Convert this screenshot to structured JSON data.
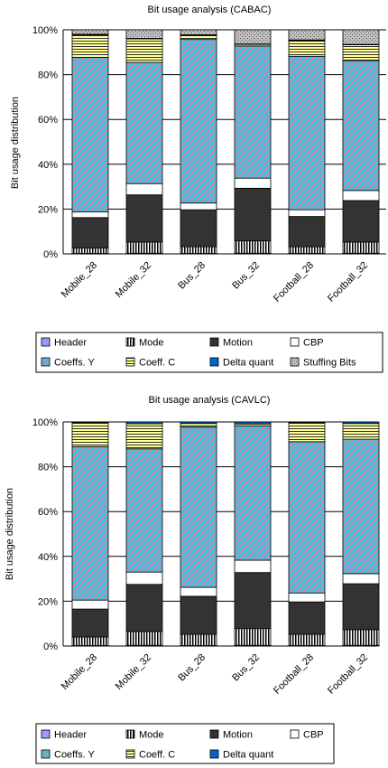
{
  "chart_data": [
    {
      "type": "bar",
      "stacked": true,
      "percent": true,
      "title": "Bit usage analysis (CABAC)",
      "ylabel": "Bit usage distribution",
      "xlabel": "",
      "ylim": [
        0,
        100
      ],
      "yticks": [
        "0%",
        "20%",
        "40%",
        "60%",
        "80%",
        "100%"
      ],
      "grid": true,
      "legend_position": "bottom",
      "categories": [
        "Mobile_28",
        "Mobile_32",
        "Bus_28",
        "Bus_32",
        "Football_28",
        "Football_32"
      ],
      "series": [
        {
          "name": "Header",
          "values": [
            0.2,
            0.3,
            0.2,
            0.3,
            0.2,
            0.3
          ]
        },
        {
          "name": "Mode",
          "values": [
            2.5,
            5,
            3,
            5.5,
            3,
            5
          ]
        },
        {
          "name": "Motion",
          "values": [
            13.5,
            21,
            16.5,
            23.5,
            13.5,
            18.5
          ]
        },
        {
          "name": "CBP",
          "values": [
            2.5,
            5,
            3,
            4.5,
            3,
            4.5
          ]
        },
        {
          "name": "Coeffs. Y",
          "values": [
            69,
            54,
            73,
            59,
            68.5,
            58
          ]
        },
        {
          "name": "Coeff. C",
          "values": [
            10,
            10.5,
            1.8,
            0.7,
            7,
            7
          ]
        },
        {
          "name": "Delta quant",
          "values": [
            0.3,
            0.2,
            0.3,
            0.2,
            0.3,
            0.2
          ]
        },
        {
          "name": "Stuffing Bits",
          "values": [
            2,
            3.8,
            2.2,
            6.3,
            4.5,
            6.5
          ]
        }
      ]
    },
    {
      "type": "bar",
      "stacked": true,
      "percent": true,
      "title": "Bit usage analysis (CAVLC)",
      "ylabel": "Bit usage distribution",
      "xlabel": "",
      "ylim": [
        0,
        100
      ],
      "yticks": [
        "0%",
        "20%",
        "40%",
        "60%",
        "80%",
        "100%"
      ],
      "grid": true,
      "legend_position": "bottom",
      "categories": [
        "Mobile_28",
        "Mobile_32",
        "Bus_28",
        "Bus_32",
        "Football_28",
        "Football_32"
      ],
      "series": [
        {
          "name": "Header",
          "values": [
            0.2,
            0.3,
            0.2,
            0.3,
            0.2,
            0.3
          ]
        },
        {
          "name": "Mode",
          "values": [
            3.8,
            6.2,
            5,
            7.5,
            5,
            7
          ]
        },
        {
          "name": "Motion",
          "values": [
            12.5,
            21,
            17,
            25,
            14.5,
            20.5
          ]
        },
        {
          "name": "CBP",
          "values": [
            4,
            5.5,
            4,
            5.5,
            4,
            4.5
          ]
        },
        {
          "name": "Coeffs. Y",
          "values": [
            68.5,
            55,
            71.5,
            60,
            67.5,
            60
          ]
        },
        {
          "name": "Coeff. C",
          "values": [
            10.7,
            11.2,
            1.6,
            0.8,
            8.5,
            7
          ]
        },
        {
          "name": "Delta quant",
          "values": [
            0.3,
            0.8,
            0.7,
            0.9,
            0.3,
            0.7
          ]
        }
      ]
    }
  ],
  "styles": {
    "Header": {
      "fill": "#9999ff",
      "pattern": "solid",
      "color": "#9999ff"
    },
    "Mode": {
      "fill": "#ffffff",
      "pattern": "vstripes",
      "color": "#000000"
    },
    "Motion": {
      "fill": "#333333",
      "pattern": "solid",
      "color": "#333333"
    },
    "CBP": {
      "fill": "#ffffff",
      "pattern": "solid",
      "color": "#ffffff"
    },
    "Coeffs. Y": {
      "fill": "#33cccc",
      "pattern": "diag",
      "color": "#ff66cc"
    },
    "Coeff. C": {
      "fill": "#ffff99",
      "pattern": "hstripes",
      "color": "#000000"
    },
    "Delta quant": {
      "fill": "#0066cc",
      "pattern": "solid",
      "color": "#0066cc"
    },
    "Stuffing Bits": {
      "fill": "#c0c0c0",
      "pattern": "dots",
      "color": "#555555"
    }
  }
}
